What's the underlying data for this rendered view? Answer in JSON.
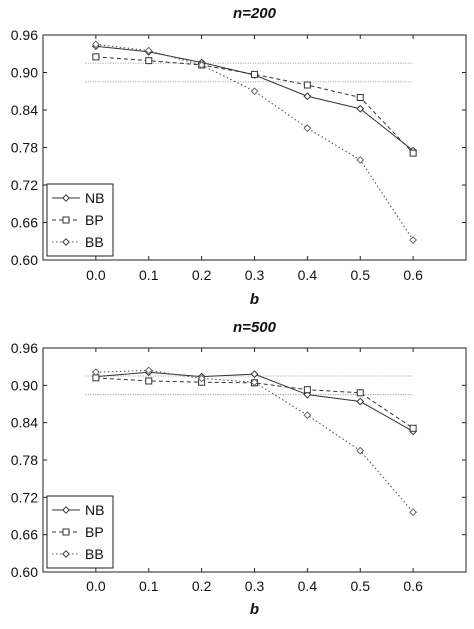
{
  "chart_data": [
    {
      "type": "line",
      "title": "n=200",
      "xlabel": "b",
      "ylabel": "",
      "x": [
        0.0,
        0.1,
        0.2,
        0.3,
        0.4,
        0.5,
        0.6
      ],
      "x_tick_labels": [
        "0.0",
        "0.1",
        "0.2",
        "0.3",
        "0.4",
        "0.5",
        "0.6"
      ],
      "xlim": [
        -0.1,
        0.7
      ],
      "ylim": [
        0.6,
        0.96
      ],
      "y_tick_labels": [
        "0.96",
        "0.90",
        "0.84",
        "0.78",
        "0.72",
        "0.66",
        "0.60"
      ],
      "y_ticks": [
        0.96,
        0.9,
        0.84,
        0.78,
        0.72,
        0.66,
        0.6
      ],
      "series": [
        {
          "name": "NB",
          "values": [
            0.942,
            0.933,
            0.916,
            0.896,
            0.862,
            0.842,
            0.775
          ],
          "style": "solid",
          "marker": "diamond"
        },
        {
          "name": "BP",
          "values": [
            0.925,
            0.919,
            0.912,
            0.897,
            0.88,
            0.86,
            0.771
          ],
          "style": "dashed",
          "marker": "square"
        },
        {
          "name": "BB",
          "values": [
            0.945,
            0.935,
            0.912,
            0.87,
            0.811,
            0.76,
            0.632
          ],
          "style": "dotted",
          "marker": "diamond"
        }
      ],
      "reference_lines": [
        0.915,
        0.885
      ],
      "legend_position": "bottom-left",
      "grid": false
    },
    {
      "type": "line",
      "title": "n=500",
      "xlabel": "b",
      "ylabel": "",
      "x": [
        0.0,
        0.1,
        0.2,
        0.3,
        0.4,
        0.5,
        0.6
      ],
      "x_tick_labels": [
        "0.0",
        "0.1",
        "0.2",
        "0.3",
        "0.4",
        "0.5",
        "0.6"
      ],
      "xlim": [
        -0.1,
        0.7
      ],
      "ylim": [
        0.6,
        0.96
      ],
      "y_tick_labels": [
        "0.96",
        "0.90",
        "0.84",
        "0.78",
        "0.72",
        "0.66",
        "0.60"
      ],
      "y_ticks": [
        0.96,
        0.9,
        0.84,
        0.78,
        0.72,
        0.66,
        0.6
      ],
      "series": [
        {
          "name": "NB",
          "values": [
            0.914,
            0.921,
            0.914,
            0.918,
            0.885,
            0.874,
            0.826
          ],
          "style": "solid",
          "marker": "diamond"
        },
        {
          "name": "BP",
          "values": [
            0.912,
            0.907,
            0.905,
            0.904,
            0.893,
            0.888,
            0.831
          ],
          "style": "dashed",
          "marker": "square"
        },
        {
          "name": "BB",
          "values": [
            0.921,
            0.924,
            0.911,
            0.905,
            0.852,
            0.795,
            0.696
          ],
          "style": "dotted",
          "marker": "diamond"
        }
      ],
      "reference_lines": [
        0.915,
        0.885
      ],
      "legend_position": "bottom-left",
      "grid": false
    }
  ]
}
